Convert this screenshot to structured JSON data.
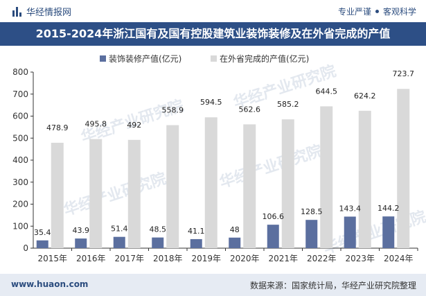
{
  "header": {
    "brand": "华经情报网",
    "tag1": "专业严谨",
    "tag2": "客观科学"
  },
  "footer": {
    "website": "www.huaon.com",
    "source": "数据来源：国家统计局，华经产业研究院整理"
  },
  "watermark": "华经产业研究院",
  "colors": {
    "series1": "#5b6f9f",
    "series2": "#d9d9d9",
    "title_bg": "#2d4f86"
  },
  "chart_data": {
    "type": "bar",
    "title": "2015-2024年浙江国有及国有控股建筑业装饰装修及在外省完成的产值",
    "categories": [
      "2015年",
      "2016年",
      "2017年",
      "2018年",
      "2019年",
      "2020年",
      "2021年",
      "2022年",
      "2023年",
      "2024年"
    ],
    "series": [
      {
        "name": "装饰装修产值(亿元)",
        "values": [
          35.4,
          43.9,
          51.4,
          48.5,
          41.1,
          48,
          106.6,
          128.5,
          143.4,
          144.2
        ],
        "labels": [
          "35.4",
          "43.9",
          "51.4",
          "48.5",
          "41.1",
          "48",
          "106.6",
          "128.5",
          "143.4",
          "144.2"
        ]
      },
      {
        "name": "在外省完成的产值(亿元)",
        "values": [
          478.9,
          495.8,
          492,
          558.9,
          594.5,
          562.6,
          585.2,
          644.5,
          624.2,
          723.7
        ],
        "labels": [
          "478.9",
          "495.8",
          "492",
          "558.9",
          "594.5",
          "562.6",
          "585.2",
          "644.5",
          "624.2",
          "723.7"
        ]
      }
    ],
    "yticks": [
      "0",
      "100",
      "200",
      "300",
      "400",
      "500",
      "600",
      "700",
      "800"
    ],
    "ylim": [
      0,
      800
    ],
    "legend_position": "top",
    "grid": false
  }
}
